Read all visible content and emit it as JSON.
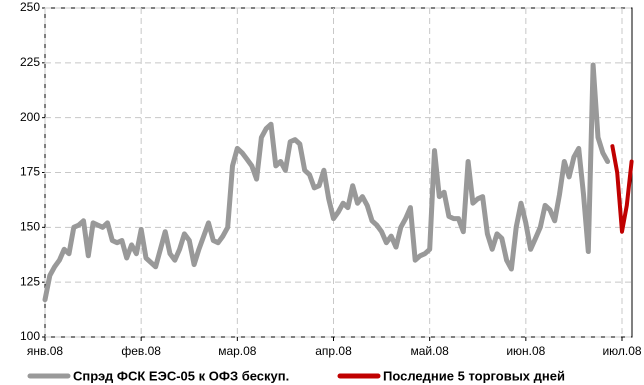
{
  "chart_data": {
    "type": "line",
    "categories": [
      "янв.08",
      null,
      null,
      null,
      null,
      null,
      null,
      null,
      null,
      null,
      null,
      null,
      null,
      null,
      null,
      null,
      null,
      null,
      null,
      null,
      "фев.08",
      null,
      null,
      null,
      null,
      null,
      null,
      null,
      null,
      null,
      null,
      null,
      null,
      null,
      null,
      null,
      null,
      null,
      null,
      null,
      "мар.08",
      null,
      null,
      null,
      null,
      null,
      null,
      null,
      null,
      null,
      null,
      null,
      null,
      null,
      null,
      null,
      null,
      null,
      null,
      null,
      "апр.08",
      null,
      null,
      null,
      null,
      null,
      null,
      null,
      null,
      null,
      null,
      null,
      null,
      null,
      null,
      null,
      null,
      null,
      null,
      null,
      "май.08",
      null,
      null,
      null,
      null,
      null,
      null,
      null,
      null,
      null,
      null,
      null,
      null,
      null,
      null,
      null,
      null,
      null,
      null,
      null,
      "июн.08",
      null,
      null,
      null,
      null,
      null,
      null,
      null,
      null,
      null,
      null,
      null,
      null,
      null,
      null,
      null,
      null,
      null,
      null,
      null,
      "июл.08",
      null,
      null
    ],
    "series": [
      {
        "name": "Спрэд ФСК ЕЭС-05 к ОФЗ бескуп.",
        "color": "#999999",
        "values": [
          117,
          128,
          132,
          135,
          140,
          138,
          150,
          151,
          153,
          137,
          152,
          151,
          150,
          152,
          144,
          143,
          144,
          136,
          142,
          138,
          149,
          136,
          134,
          132,
          140,
          148,
          138,
          135,
          140,
          147,
          144,
          133,
          140,
          146,
          152,
          144,
          143,
          146,
          150,
          178,
          186,
          184,
          181,
          178,
          172,
          191,
          195,
          197,
          178,
          180,
          176,
          189,
          190,
          188,
          176,
          174,
          168,
          169,
          176,
          163,
          154,
          157,
          161,
          159,
          169,
          161,
          164,
          160,
          153,
          151,
          148,
          143,
          146,
          141,
          150,
          154,
          159,
          135,
          137,
          138,
          140,
          185,
          164,
          166,
          155,
          154,
          154,
          148,
          180,
          161,
          163,
          164,
          147,
          140,
          147,
          145,
          135,
          131,
          150,
          161,
          152,
          140,
          145,
          150,
          160,
          158,
          153,
          165,
          180,
          173,
          182,
          186,
          165,
          139,
          224,
          191,
          184,
          180,
          null,
          null,
          null,
          null,
          null
        ]
      },
      {
        "name": "Последние 5 торговых дней",
        "color": "#c00000",
        "values": [
          null,
          null,
          null,
          null,
          null,
          null,
          null,
          null,
          null,
          null,
          null,
          null,
          null,
          null,
          null,
          null,
          null,
          null,
          null,
          null,
          null,
          null,
          null,
          null,
          null,
          null,
          null,
          null,
          null,
          null,
          null,
          null,
          null,
          null,
          null,
          null,
          null,
          null,
          null,
          null,
          null,
          null,
          null,
          null,
          null,
          null,
          null,
          null,
          null,
          null,
          null,
          null,
          null,
          null,
          null,
          null,
          null,
          null,
          null,
          null,
          null,
          null,
          null,
          null,
          null,
          null,
          null,
          null,
          null,
          null,
          null,
          null,
          null,
          null,
          null,
          null,
          null,
          null,
          null,
          null,
          null,
          null,
          null,
          null,
          null,
          null,
          null,
          null,
          null,
          null,
          null,
          null,
          null,
          null,
          null,
          null,
          null,
          null,
          null,
          null,
          null,
          null,
          null,
          null,
          null,
          null,
          null,
          null,
          null,
          null,
          null,
          null,
          null,
          null,
          null,
          null,
          null,
          null,
          187,
          175,
          148,
          160,
          180
        ]
      }
    ],
    "ylim": [
      100,
      250
    ],
    "yticks": [
      100,
      125,
      150,
      175,
      200,
      225,
      250
    ],
    "grid": true
  }
}
